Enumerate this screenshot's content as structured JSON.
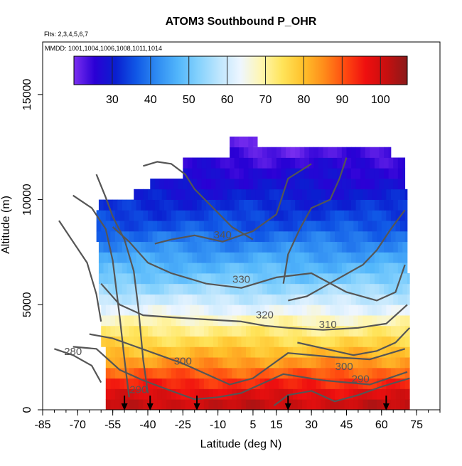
{
  "chart_data": {
    "type": "heatmap",
    "title": "ATOM3 Southbound P_OHR",
    "flights_note": "Flts: 2,3,4,5,6,7",
    "dates_note": "MMDD: 1001,1004,1006,1008,1011,1014",
    "xlabel": "Latitude (deg N)",
    "ylabel": "Altitude (m)",
    "xlim": [
      -85,
      85
    ],
    "ylim": [
      0,
      17500
    ],
    "x_ticks": [
      -85,
      -70,
      -55,
      -40,
      -25,
      -10,
      5,
      15,
      30,
      45,
      60,
      75
    ],
    "x_tick_labels": [
      "-85",
      "-70",
      "-55",
      "-40",
      "-25",
      "-10",
      "5",
      "15",
      "30",
      "45",
      "60",
      "75"
    ],
    "y_ticks": [
      0,
      5000,
      10000,
      15000
    ],
    "y_tick_labels": [
      "0",
      "5000",
      "10000",
      "15000"
    ],
    "colorbar": {
      "range": [
        20,
        107
      ],
      "ticks": [
        30,
        40,
        50,
        60,
        70,
        80,
        90,
        100
      ],
      "tick_labels": [
        "30",
        "40",
        "50",
        "60",
        "70",
        "80",
        "90",
        "100"
      ],
      "colors": [
        "#7b2ff0",
        "#2a00d5",
        "#0a1fd0",
        "#1058e6",
        "#2f8cf2",
        "#52b6fb",
        "#86d2fd",
        "#bfe6fd",
        "#eef6ff",
        "#fff6b0",
        "#ffe45a",
        "#ffc12b",
        "#ff8c1a",
        "#ff4a10",
        "#ef0f0f",
        "#c70f0f",
        "#8a1a1a"
      ]
    },
    "altitude_bins_m": [
      0,
      500,
      1000,
      1500,
      2000,
      2500,
      3000,
      3500,
      4000,
      4500,
      5000,
      5500,
      6000,
      6500,
      7000,
      7500,
      8000,
      8500,
      9000,
      9500,
      10000,
      10500,
      11000,
      11500,
      12000,
      12500
    ],
    "row_values": [
      101,
      98,
      94,
      89,
      84,
      80,
      76,
      72,
      68,
      63,
      59,
      55,
      51,
      48,
      45,
      42,
      39,
      36,
      34,
      32,
      30,
      28,
      27,
      25,
      23,
      21
    ],
    "row_lat_extent": [
      [
        -58,
        72
      ],
      [
        -58,
        72
      ],
      [
        -58,
        72
      ],
      [
        -58,
        72
      ],
      [
        -58,
        72
      ],
      [
        -58,
        72
      ],
      [
        -60,
        72
      ],
      [
        -60,
        72
      ],
      [
        -60,
        72
      ],
      [
        -60,
        72
      ],
      [
        -61,
        72
      ],
      [
        -61,
        72
      ],
      [
        -61,
        72
      ],
      [
        -61,
        71
      ],
      [
        -61,
        71
      ],
      [
        -61,
        71
      ],
      [
        -62,
        71
      ],
      [
        -62,
        71
      ],
      [
        -62,
        71
      ],
      [
        -61,
        71
      ],
      [
        -46,
        71
      ],
      [
        -39,
        70
      ],
      [
        -25,
        70
      ],
      [
        -25,
        70
      ],
      [
        -5,
        64
      ],
      [
        -5,
        5
      ]
    ],
    "contour_labels": [
      {
        "text": "340",
        "lat": -8,
        "alt": 8150
      },
      {
        "text": "330",
        "lat": 0,
        "alt": 6050
      },
      {
        "text": "320",
        "lat": 10,
        "alt": 4350
      },
      {
        "text": "310",
        "lat": 37,
        "alt": 3900
      },
      {
        "text": "300",
        "lat": -25,
        "alt": 2150
      },
      {
        "text": "300",
        "lat": 44,
        "alt": 1900
      },
      {
        "text": "290",
        "lat": -44,
        "alt": 800
      },
      {
        "text": "290",
        "lat": 51,
        "alt": 1300
      },
      {
        "text": "280",
        "lat": -72,
        "alt": 2600
      }
    ],
    "arrows_lat": [
      -50,
      -39,
      -19,
      20,
      62
    ]
  }
}
